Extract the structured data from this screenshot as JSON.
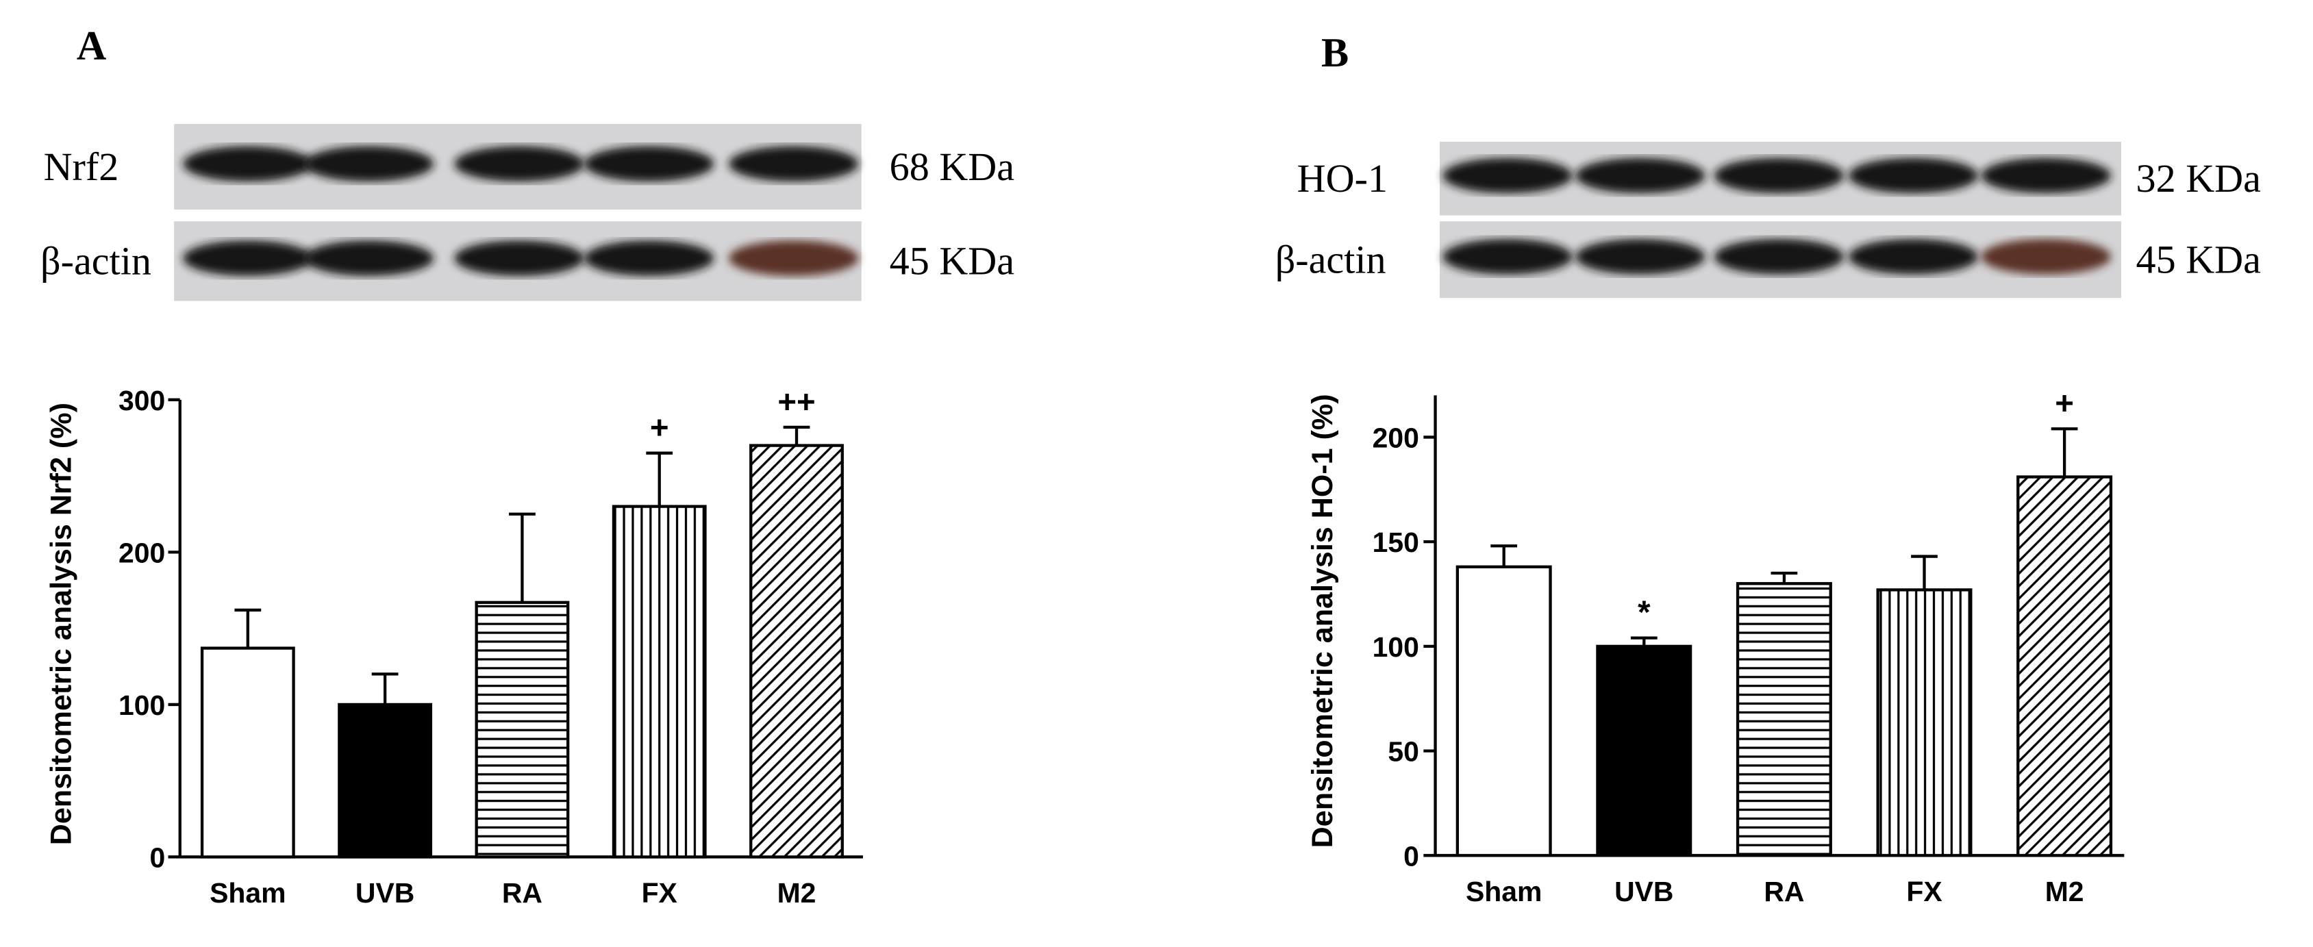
{
  "chart_data": [
    {
      "type": "bar",
      "panel": "A",
      "blots": [
        {
          "label": "Nrf2",
          "size": "68 KDa"
        },
        {
          "label": "β-actin",
          "size": "45 KDa"
        }
      ],
      "ylabel": "Densitometric analysis Nrf2 (%)",
      "categories": [
        "Sham",
        "UVB",
        "RA",
        "FX",
        "M2"
      ],
      "values": [
        137,
        100,
        167,
        230,
        270
      ],
      "errors": [
        25,
        20,
        58,
        35,
        12
      ],
      "annotations": [
        null,
        null,
        null,
        "+",
        "++"
      ],
      "fills": [
        "white",
        "black",
        "horizontal",
        "vertical",
        "diagonal"
      ],
      "ylim": [
        0,
        300
      ],
      "yticks": [
        0,
        100,
        200,
        300
      ]
    },
    {
      "type": "bar",
      "panel": "B",
      "blots": [
        {
          "label": "HO-1",
          "size": "32 KDa"
        },
        {
          "label": "β-actin",
          "size": "45 KDa"
        }
      ],
      "ylabel": "Densitometric analysis HO-1 (%)",
      "categories": [
        "Sham",
        "UVB",
        "RA",
        "FX",
        "M2"
      ],
      "values": [
        138,
        100,
        130,
        127,
        181
      ],
      "errors": [
        10,
        4,
        5,
        16,
        23
      ],
      "annotations": [
        null,
        "*",
        null,
        null,
        "+"
      ],
      "fills": [
        "white",
        "black",
        "horizontal",
        "vertical",
        "diagonal"
      ],
      "ylim": [
        0,
        220
      ],
      "yticks": [
        0,
        50,
        100,
        150,
        200
      ]
    }
  ]
}
